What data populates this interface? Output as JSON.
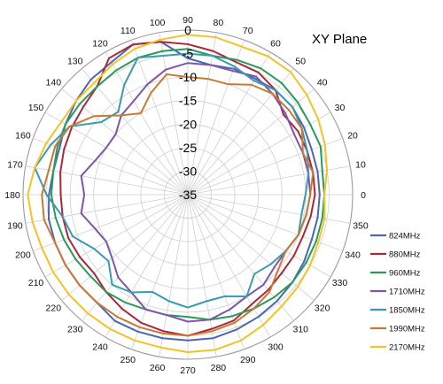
{
  "chart_data": {
    "type": "polar-line",
    "title": "XY Plane",
    "angle_unit": "deg",
    "angle_ticks": [
      0,
      10,
      20,
      30,
      40,
      50,
      60,
      70,
      80,
      90,
      100,
      110,
      120,
      130,
      140,
      150,
      160,
      170,
      180,
      190,
      200,
      210,
      220,
      230,
      240,
      250,
      260,
      270,
      280,
      290,
      300,
      310,
      320,
      330,
      340,
      350
    ],
    "radial_ticks": [
      0,
      -5,
      -10,
      -15,
      -20,
      -25,
      -30,
      -35
    ],
    "rlim": [
      -35,
      0
    ],
    "legend_position": "lower-right",
    "grid": true,
    "series": [
      {
        "name": "824MHz",
        "color": "#4a67b0",
        "angles": [
          0,
          10,
          20,
          30,
          40,
          50,
          60,
          70,
          80,
          90,
          100,
          110,
          120,
          130,
          140,
          150,
          160,
          170,
          180,
          190,
          200,
          210,
          220,
          230,
          240,
          250,
          260,
          270,
          280,
          290,
          300,
          310,
          320,
          330,
          340,
          350
        ],
        "values": [
          -7,
          -7,
          -7,
          -6.5,
          -6,
          -6,
          -6.5,
          -6.5,
          -7,
          -6,
          -2,
          -1,
          -2.5,
          -3,
          -4,
          -5,
          -6,
          -6,
          -5.5,
          -5,
          -5,
          -5,
          -5,
          -5,
          -4,
          -4,
          -4,
          -4,
          -4,
          -4.5,
          -5,
          -5.5,
          -6,
          -6.5,
          -7,
          -7
        ]
      },
      {
        "name": "880MHz",
        "color": "#a8283c",
        "angles": [
          0,
          10,
          20,
          30,
          40,
          50,
          60,
          70,
          80,
          90,
          100,
          110,
          120,
          130,
          140,
          150,
          160,
          170,
          180,
          190,
          200,
          210,
          220,
          230,
          240,
          250,
          260,
          270,
          280,
          290,
          300,
          310,
          320,
          330,
          340,
          350
        ],
        "values": [
          -8,
          -8,
          -8,
          -8,
          -8.5,
          -6,
          -5,
          -5,
          -4,
          -3,
          -2,
          -1,
          -1.5,
          -5,
          -6,
          -6.5,
          -7,
          -7.5,
          -8,
          -8,
          -8,
          -8.5,
          -9,
          -8,
          -7,
          -6,
          -5.5,
          -5,
          -6,
          -6.5,
          -8,
          -8.5,
          -9,
          -9,
          -9,
          -8.5
        ]
      },
      {
        "name": "960MHz",
        "color": "#2a9a5a",
        "angles": [
          0,
          10,
          20,
          30,
          40,
          50,
          60,
          70,
          80,
          90,
          100,
          110,
          120,
          130,
          140,
          150,
          160,
          170,
          180,
          190,
          200,
          210,
          220,
          230,
          240,
          250,
          260,
          270,
          280,
          290,
          300,
          310,
          320,
          330,
          340,
          350
        ],
        "values": [
          -6,
          -6,
          -5,
          -5,
          -4.5,
          -4,
          -4,
          -4.5,
          -5,
          -4,
          -4,
          -4,
          -4.5,
          -5,
          -5,
          -5,
          -5.5,
          -6,
          -6,
          -6.5,
          -7,
          -7.5,
          -8,
          -8,
          -8.5,
          -9,
          -9,
          -9,
          -8,
          -7.5,
          -7,
          -6.5,
          -6,
          -6,
          -6,
          -6
        ]
      },
      {
        "name": "1710MHz",
        "color": "#7e55a8",
        "angles": [
          0,
          10,
          20,
          30,
          40,
          50,
          60,
          70,
          80,
          90,
          100,
          110,
          120,
          130,
          140,
          150,
          160,
          170,
          180,
          190,
          200,
          210,
          220,
          230,
          240,
          250,
          260,
          270,
          280,
          290,
          300,
          310,
          320,
          330,
          340,
          350
        ],
        "values": [
          -9,
          -9,
          -9,
          -9,
          -8,
          -7,
          -6,
          -7,
          -7,
          -7,
          -8,
          -10,
          -12,
          -13,
          -15,
          -15,
          -14,
          -12,
          -13,
          -12,
          -14,
          -15,
          -14,
          -12,
          -11,
          -9,
          -9,
          -8,
          -8,
          -9,
          -10,
          -10,
          -11,
          -11,
          -10,
          -9.5
        ]
      },
      {
        "name": "1850MHz",
        "color": "#3a9ab0",
        "angles": [
          0,
          10,
          20,
          30,
          40,
          50,
          60,
          70,
          80,
          90,
          100,
          110,
          120,
          130,
          140,
          150,
          160,
          170,
          180,
          190,
          200,
          210,
          220,
          230,
          240,
          250,
          260,
          270,
          280,
          290,
          300,
          310,
          320,
          330,
          340,
          350
        ],
        "values": [
          -10,
          -9,
          -8,
          -7,
          -6,
          -6,
          -7,
          -6,
          -5,
          -5,
          -5,
          -4,
          -8,
          -12,
          -11,
          -6,
          -4,
          -2,
          -5,
          -8,
          -9,
          -12,
          -13,
          -10,
          -11,
          -13,
          -12,
          -11,
          -12,
          -12,
          -10,
          -13,
          -12,
          -11,
          -10,
          -10.5
        ]
      },
      {
        "name": "1990MHz",
        "color": "#c87a35",
        "angles": [
          0,
          10,
          20,
          30,
          40,
          50,
          60,
          70,
          80,
          90,
          100,
          110,
          120,
          130,
          140,
          150,
          160,
          170,
          180,
          190,
          200,
          210,
          220,
          230,
          240,
          250,
          260,
          270,
          280,
          290,
          300,
          310,
          320,
          330,
          340,
          350
        ],
        "values": [
          -9,
          -8,
          -9,
          -7,
          -7,
          -7,
          -8,
          -10,
          -10,
          -10,
          -9,
          -12,
          -15,
          -13,
          -9,
          -6,
          -5,
          -5,
          -4,
          -4,
          -5,
          -5,
          -5,
          -5,
          -5,
          -5,
          -5,
          -5,
          -5.5,
          -6,
          -7,
          -8,
          -10,
          -11,
          -10,
          -9.5
        ]
      },
      {
        "name": "2170MHz",
        "color": "#f2c22a",
        "angles": [
          0,
          10,
          20,
          30,
          40,
          50,
          60,
          70,
          80,
          90,
          100,
          110,
          120,
          130,
          140,
          150,
          160,
          170,
          180,
          190,
          200,
          210,
          220,
          230,
          240,
          250,
          260,
          270,
          280,
          290,
          300,
          310,
          320,
          330,
          340,
          350
        ],
        "values": [
          -6,
          -5,
          -4,
          -3,
          -2,
          -1,
          -1,
          -1.5,
          -1,
          -1,
          -1.5,
          -2,
          -3,
          -4,
          -4,
          -4,
          -3,
          -2,
          -1,
          -1.5,
          -2,
          -2,
          -2,
          -2,
          -2,
          -2,
          -2,
          -1.5,
          -1.5,
          -2,
          -3,
          -4,
          -4.5,
          -5,
          -5.5,
          -5.5
        ]
      }
    ]
  }
}
